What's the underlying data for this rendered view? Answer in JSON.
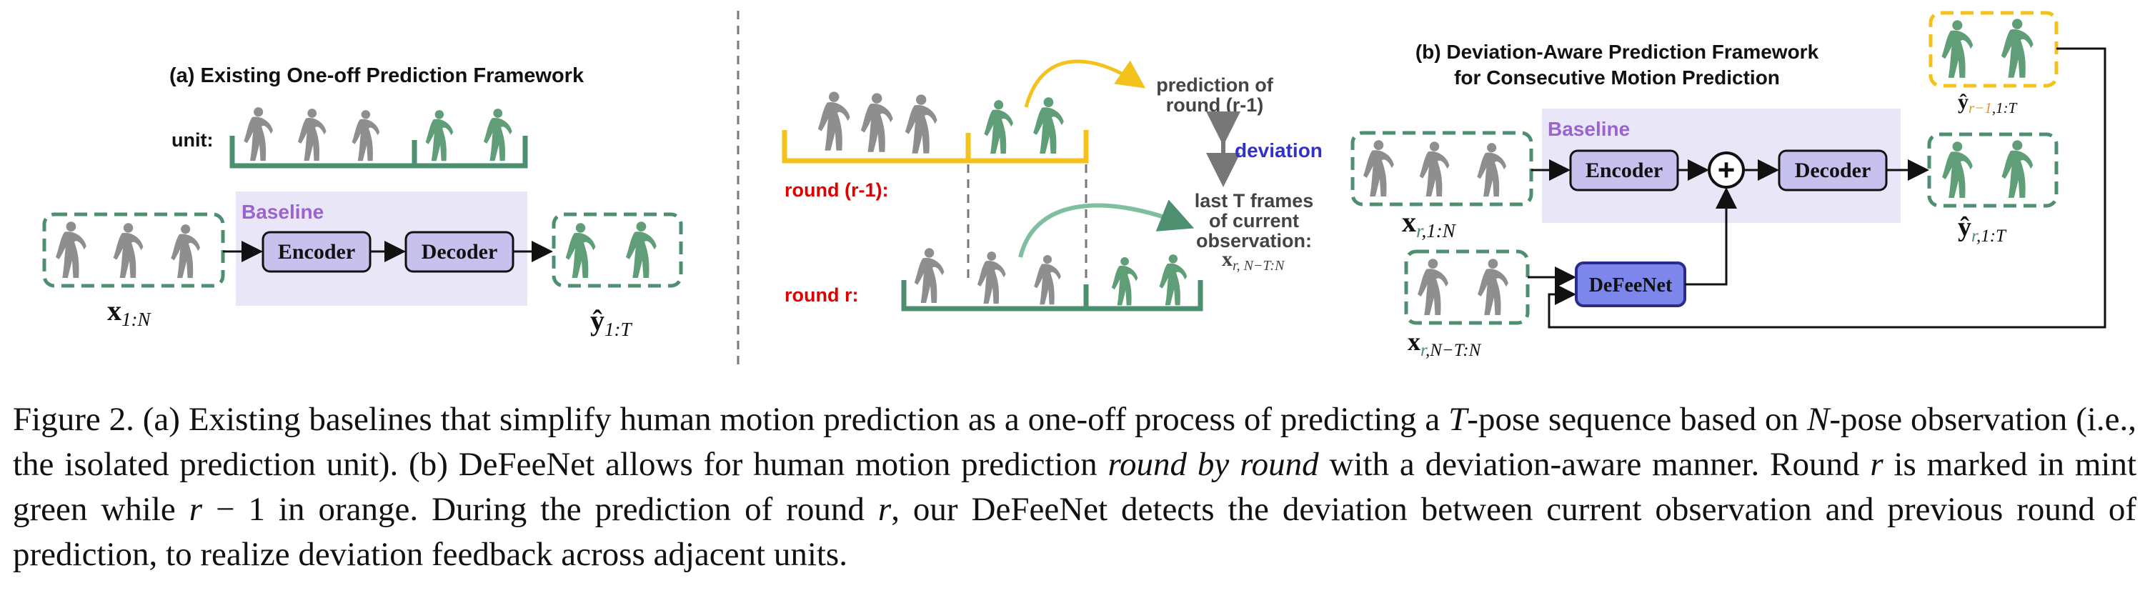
{
  "panel_a": {
    "title": "(a) Existing One-off Prediction Framework",
    "unit_label": "unit:",
    "baseline_label": "Baseline",
    "encoder": "Encoder",
    "decoder": "Decoder",
    "input_label": {
      "base": "x",
      "sub": "1:N"
    },
    "output_label": {
      "base": "ŷ",
      "sub": "1:T"
    }
  },
  "panel_mid": {
    "prediction_note": [
      "prediction of",
      "round (r-1)"
    ],
    "deviation": "deviation",
    "round_prev": "round (r-1):",
    "round_cur": "round r:",
    "last_frames_note": [
      "last T frames",
      "of current",
      "observation:"
    ],
    "last_frames_sym": {
      "base": "x",
      "sub": "r, N−T:N"
    }
  },
  "panel_b": {
    "title_line1": "(b) Deviation-Aware Prediction Framework",
    "title_line2": "for Consecutive Motion Prediction",
    "baseline_label": "Baseline",
    "encoder": "Encoder",
    "decoder": "Decoder",
    "defeenet": "DeFeeNet",
    "plus": "+",
    "input_label": {
      "base": "x",
      "r": "r",
      "sub": ",1:N"
    },
    "obs_label": {
      "base": "x",
      "r": "r",
      "sub": ",N−T:N"
    },
    "out_label": {
      "base": "ŷ",
      "r": "r",
      "sub": ",1:T"
    },
    "prev_label": {
      "base": "ŷ",
      "r": "r−1",
      "sub": ",1:T"
    }
  },
  "colors": {
    "gray_figure": "#8e8e8e",
    "green_figure": "#5f9e76",
    "mint": "#4e8f70",
    "orange": "#f4c21d",
    "baseline_bg": "#e9e6f7",
    "block_fill": "#c7c1ee",
    "defeenet_fill": "#7d86ea",
    "red_label": "#e00000",
    "purple_label": "#9a63cf",
    "deviation_blue": "#3232c8"
  },
  "caption": {
    "label": "Figure 2.",
    "p1": "(a) Existing baselines that simplify human motion prediction as a one-off process of predicting a",
    "T1": "T",
    "p2": "-pose sequence based on",
    "N1": "N",
    "p3": "-pose observation (i.e., the isolated prediction unit). (b) DeFeeNet allows for human motion prediction",
    "italic1": "round by round",
    "p4": "with a deviation-aware manner. Round",
    "r1": "r",
    "p5": "is marked in mint green while",
    "r2": "r",
    "p6": "− 1 in orange. During the prediction of round",
    "r3": "r",
    "p7": ", our DeFeeNet detects the deviation between current observation and previous round of prediction, to realize deviation feedback across adjacent units."
  }
}
